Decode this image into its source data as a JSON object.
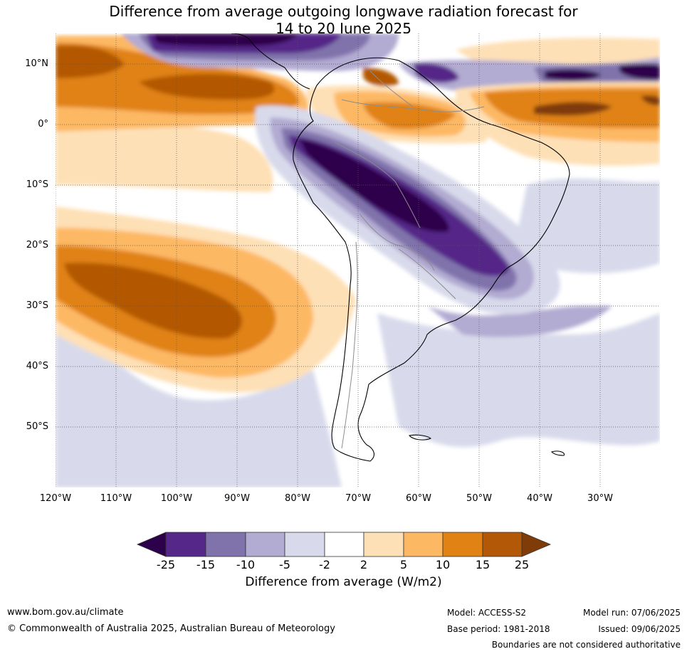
{
  "title": {
    "line1": "Difference from average outgoing longwave radiation forecast for",
    "line2": "14 to 20 June 2025"
  },
  "map": {
    "lat_ticks": [
      "10°N",
      "0°",
      "10°S",
      "20°S",
      "30°S",
      "40°S",
      "50°S"
    ],
    "lon_ticks": [
      "120°W",
      "110°W",
      "100°W",
      "90°W",
      "80°W",
      "70°W",
      "60°W",
      "50°W",
      "40°W",
      "30°W"
    ]
  },
  "colorbar": {
    "labels": [
      "-25",
      "-15",
      "-10",
      "-5",
      "-2",
      "2",
      "5",
      "10",
      "15",
      "25"
    ],
    "colors": [
      "#2d004b",
      "#542788",
      "#8073ac",
      "#b2abd2",
      "#d8daeb",
      "#ffffff",
      "#fee0b6",
      "#fdb863",
      "#e08214",
      "#b35806",
      "#7f3b08"
    ],
    "title": "Difference from average (W/m2)"
  },
  "footer": {
    "website": "www.bom.gov.au/climate",
    "copyright": "© Commonwealth of Australia 2025, Australian Bureau of Meteorology",
    "model": "Model: ACCESS-S2",
    "model_run": "Model run: 07/06/2025",
    "base_period": "Base period: 1981-2018",
    "issued": "Issued: 09/06/2025",
    "disclaimer": "Boundaries are not considered authoritative"
  }
}
